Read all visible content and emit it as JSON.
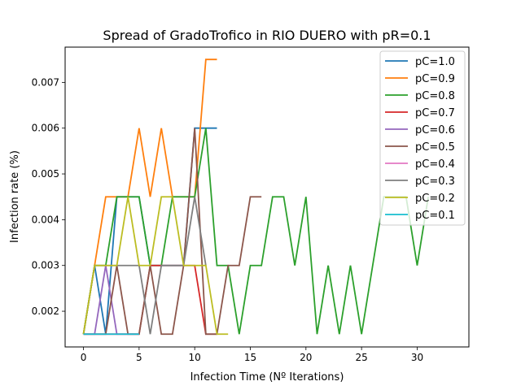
{
  "chart_data": {
    "type": "line",
    "title": "Spread of GradoTrofico in RIO DUERO with pR=0.1",
    "xlabel": "Infection Time (Nº Iterations)",
    "ylabel": "Infection rate (%)",
    "xlim": [
      -1.65,
      34.65
    ],
    "ylim": [
      0.00122,
      0.00777
    ],
    "xticks": [
      0,
      5,
      10,
      15,
      20,
      25,
      30
    ],
    "yticks": [
      0.002,
      0.003,
      0.004,
      0.005,
      0.006,
      0.007
    ],
    "ytick_labels": [
      "0.002",
      "0.003",
      "0.004",
      "0.005",
      "0.006",
      "0.007"
    ],
    "grid": false,
    "legend_position": "top-right",
    "series": [
      {
        "name": "pC=1.0",
        "color": "#1f77b4",
        "x": [
          0,
          1,
          2,
          3,
          4,
          5,
          6,
          7,
          8,
          9,
          10,
          11,
          12
        ],
        "y": [
          0.0015,
          0.003,
          0.0015,
          0.0045,
          0.0045,
          0.0045,
          0.003,
          0.003,
          0.003,
          0.003,
          0.006,
          0.006,
          0.006
        ]
      },
      {
        "name": "pC=0.9",
        "color": "#ff7f0e",
        "x": [
          0,
          1,
          2,
          3,
          4,
          5,
          6,
          7,
          8,
          9,
          10,
          11,
          12
        ],
        "y": [
          0.0015,
          0.003,
          0.0045,
          0.0045,
          0.0045,
          0.006,
          0.0045,
          0.006,
          0.0045,
          0.0045,
          0.0045,
          0.0075,
          0.0075
        ]
      },
      {
        "name": "pC=0.8",
        "color": "#2ca02c",
        "x": [
          0,
          1,
          2,
          3,
          4,
          5,
          6,
          7,
          8,
          9,
          10,
          11,
          12,
          13,
          14,
          15,
          16,
          17,
          18,
          19,
          20,
          21,
          22,
          23,
          24,
          25,
          26,
          27,
          28,
          29,
          30,
          31
        ],
        "y": [
          0.0015,
          0.003,
          0.003,
          0.0045,
          0.0045,
          0.0045,
          0.003,
          0.003,
          0.0045,
          0.0045,
          0.0045,
          0.006,
          0.003,
          0.003,
          0.0015,
          0.003,
          0.003,
          0.0045,
          0.0045,
          0.003,
          0.0045,
          0.0015,
          0.003,
          0.0015,
          0.003,
          0.0015,
          0.003,
          0.0045,
          0.0045,
          0.0045,
          0.003,
          0.0045
        ]
      },
      {
        "name": "pC=0.7",
        "color": "#d62728",
        "x": [
          0,
          1,
          2,
          3,
          4,
          5,
          6,
          7,
          8,
          9,
          10,
          11,
          12
        ],
        "y": [
          0.0015,
          0.0015,
          0.0015,
          0.0015,
          0.0015,
          0.0015,
          0.003,
          0.003,
          0.003,
          0.003,
          0.003,
          0.0015,
          0.0015
        ]
      },
      {
        "name": "pC=0.6",
        "color": "#9467bd",
        "x": [
          0,
          1,
          2,
          3,
          4,
          5
        ],
        "y": [
          0.0015,
          0.0015,
          0.003,
          0.0015,
          0.0015,
          0.0015
        ]
      },
      {
        "name": "pC=0.5",
        "color": "#8c564b",
        "x": [
          0,
          1,
          2,
          3,
          4,
          5,
          6,
          7,
          8,
          9,
          10,
          11,
          12,
          13,
          14,
          15,
          16
        ],
        "y": [
          0.0015,
          0.0015,
          0.0015,
          0.003,
          0.0015,
          0.0015,
          0.003,
          0.0015,
          0.0015,
          0.003,
          0.006,
          0.0015,
          0.0015,
          0.003,
          0.003,
          0.0045,
          0.0045
        ]
      },
      {
        "name": "pC=0.4",
        "color": "#e377c2",
        "x": [
          0,
          1,
          2,
          3,
          4,
          5
        ],
        "y": [
          0.0015,
          0.0015,
          0.0015,
          0.0015,
          0.0015,
          0.0015
        ]
      },
      {
        "name": "pC=0.3",
        "color": "#7f7f7f",
        "x": [
          0,
          1,
          2,
          3,
          4,
          5,
          6,
          7,
          8,
          9,
          10,
          11
        ],
        "y": [
          0.0015,
          0.003,
          0.003,
          0.003,
          0.003,
          0.003,
          0.0015,
          0.003,
          0.003,
          0.003,
          0.0045,
          0.003
        ]
      },
      {
        "name": "pC=0.2",
        "color": "#bcbd22",
        "x": [
          0,
          1,
          2,
          3,
          4,
          5,
          6,
          7,
          8,
          9,
          10,
          11,
          12,
          13
        ],
        "y": [
          0.0015,
          0.003,
          0.003,
          0.003,
          0.0045,
          0.003,
          0.003,
          0.0045,
          0.0045,
          0.003,
          0.003,
          0.003,
          0.0015,
          0.0015
        ]
      },
      {
        "name": "pC=0.1",
        "color": "#17becf",
        "x": [
          0,
          1,
          2,
          3,
          4,
          5
        ],
        "y": [
          0.0015,
          0.0015,
          0.0015,
          0.0015,
          0.0015,
          0.0015
        ]
      }
    ]
  }
}
